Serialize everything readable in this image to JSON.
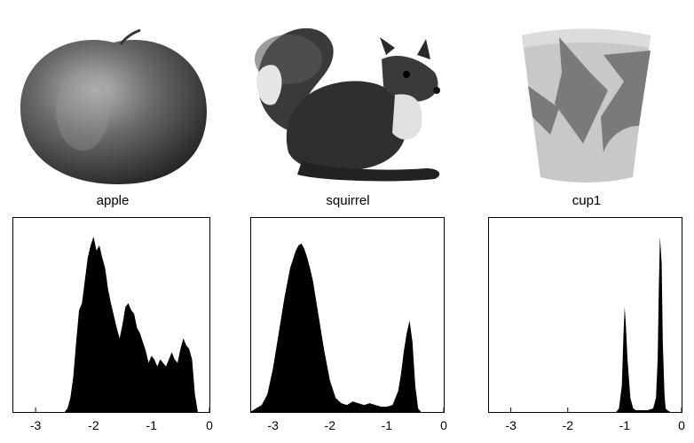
{
  "panels": [
    {
      "label": "apple"
    },
    {
      "label": "squirrel"
    },
    {
      "label": "cup1"
    }
  ],
  "chart_data": [
    {
      "type": "area",
      "title": "apple",
      "xlim": [
        -3.4,
        0
      ],
      "xticks": [
        "-3",
        "-2",
        "-1",
        "0"
      ],
      "grid": false,
      "x": [
        -2.5,
        -2.45,
        -2.4,
        -2.35,
        -2.3,
        -2.25,
        -2.2,
        -2.15,
        -2.1,
        -2.05,
        -2.0,
        -1.95,
        -1.9,
        -1.85,
        -1.8,
        -1.75,
        -1.7,
        -1.65,
        -1.6,
        -1.55,
        -1.5,
        -1.45,
        -1.4,
        -1.35,
        -1.3,
        -1.25,
        -1.2,
        -1.15,
        -1.1,
        -1.05,
        -1.0,
        -0.95,
        -0.9,
        -0.85,
        -0.8,
        -0.75,
        -0.7,
        -0.65,
        -0.6,
        -0.55,
        -0.5,
        -0.45,
        -0.4,
        -0.35,
        -0.3,
        -0.25,
        -0.2
      ],
      "y": [
        0,
        0.02,
        0.08,
        0.2,
        0.4,
        0.58,
        0.62,
        0.75,
        0.88,
        0.95,
        1.0,
        0.92,
        0.95,
        0.88,
        0.82,
        0.7,
        0.62,
        0.55,
        0.48,
        0.42,
        0.5,
        0.6,
        0.62,
        0.58,
        0.56,
        0.48,
        0.45,
        0.4,
        0.35,
        0.28,
        0.32,
        0.3,
        0.26,
        0.3,
        0.28,
        0.26,
        0.3,
        0.34,
        0.3,
        0.28,
        0.36,
        0.42,
        0.38,
        0.36,
        0.3,
        0.1,
        0
      ]
    },
    {
      "type": "area",
      "title": "squirrel",
      "xlim": [
        -3.4,
        0
      ],
      "xticks": [
        "-3",
        "-2",
        "-1",
        "0"
      ],
      "grid": false,
      "x": [
        -3.4,
        -3.3,
        -3.2,
        -3.1,
        -3.0,
        -2.9,
        -2.8,
        -2.7,
        -2.6,
        -2.55,
        -2.5,
        -2.45,
        -2.4,
        -2.35,
        -2.3,
        -2.2,
        -2.1,
        -2.0,
        -1.9,
        -1.8,
        -1.7,
        -1.6,
        -1.5,
        -1.4,
        -1.3,
        -1.2,
        -1.1,
        -1.0,
        -0.9,
        -0.8,
        -0.75,
        -0.7,
        -0.65,
        -0.6,
        -0.55,
        -0.5,
        -0.45,
        -0.4
      ],
      "y": [
        0,
        0.02,
        0.04,
        0.1,
        0.25,
        0.45,
        0.65,
        0.82,
        0.92,
        0.95,
        0.96,
        0.93,
        0.88,
        0.82,
        0.75,
        0.55,
        0.35,
        0.18,
        0.08,
        0.05,
        0.04,
        0.06,
        0.05,
        0.04,
        0.05,
        0.04,
        0.03,
        0.03,
        0.04,
        0.12,
        0.22,
        0.35,
        0.45,
        0.52,
        0.4,
        0.15,
        0.02,
        0
      ]
    },
    {
      "type": "area",
      "title": "cup1",
      "xlim": [
        -3.4,
        0
      ],
      "xticks": [
        "-3",
        "-2",
        "-1",
        "0"
      ],
      "grid": false,
      "x": [
        -3.4,
        -1.15,
        -1.1,
        -1.05,
        -1.02,
        -1.0,
        -0.98,
        -0.95,
        -0.9,
        -0.85,
        -0.8,
        -0.7,
        -0.6,
        -0.5,
        -0.45,
        -0.42,
        -0.4,
        -0.38,
        -0.35,
        -0.33,
        -0.3,
        -0.28,
        -0.25,
        -0.2,
        0
      ],
      "y": [
        0,
        0.0,
        0.02,
        0.15,
        0.45,
        0.6,
        0.5,
        0.3,
        0.08,
        0.02,
        0.01,
        0.01,
        0.01,
        0.02,
        0.08,
        0.3,
        0.7,
        1.0,
        0.85,
        0.4,
        0.1,
        0.02,
        0.01,
        0,
        0
      ]
    }
  ]
}
